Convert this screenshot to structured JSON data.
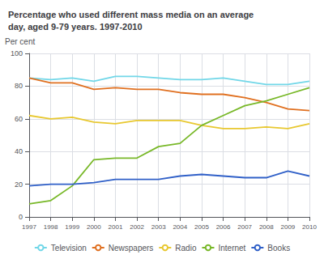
{
  "chart_data": {
    "type": "line",
    "title": "Percentage who used different mass media on an average\nday, aged 9-79 years. 1997-2010",
    "y_label": "Per cent",
    "x": [
      1997,
      1998,
      1999,
      2000,
      2001,
      2002,
      2003,
      2004,
      2005,
      2006,
      2007,
      2008,
      2009,
      2010
    ],
    "series": [
      {
        "name": "Television",
        "color": "#72d7e8",
        "values": [
          85,
          84,
          85,
          83,
          86,
          86,
          85,
          84,
          84,
          85,
          83,
          81,
          81,
          83
        ]
      },
      {
        "name": "Newspapers",
        "color": "#e07020",
        "values": [
          85,
          82,
          82,
          78,
          79,
          78,
          78,
          76,
          75,
          75,
          73,
          70,
          66,
          65
        ]
      },
      {
        "name": "Radio",
        "color": "#e8c830",
        "values": [
          62,
          60,
          61,
          58,
          57,
          59,
          59,
          59,
          56,
          54,
          54,
          55,
          54,
          57
        ]
      },
      {
        "name": "Internet",
        "color": "#78b828",
        "values": [
          8,
          10,
          19,
          35,
          36,
          36,
          43,
          45,
          56,
          62,
          68,
          71,
          75,
          79
        ]
      },
      {
        "name": "Books",
        "color": "#3060c8",
        "values": [
          19,
          20,
          20,
          21,
          23,
          23,
          23,
          25,
          26,
          25,
          24,
          24,
          28,
          25
        ]
      }
    ],
    "xlim": [
      1997,
      2010
    ],
    "xticks": [
      1997,
      1998,
      1999,
      2000,
      2001,
      2002,
      2003,
      2004,
      2005,
      2006,
      2007,
      2008,
      2009,
      2010
    ],
    "ylim": [
      0,
      100
    ],
    "yticks": [
      0,
      20,
      40,
      60,
      80,
      100
    ],
    "grid": true,
    "legend": "bottom"
  }
}
